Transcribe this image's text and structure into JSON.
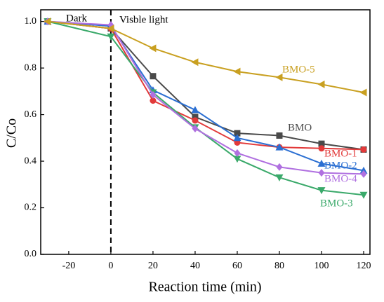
{
  "chart_data": {
    "type": "line",
    "x_label": "Reaction time (min)",
    "y_label": "C/Co",
    "annotations": [
      "Dark",
      "Visble light"
    ],
    "divider_x": 0,
    "x": [
      -30,
      0,
      20,
      40,
      60,
      80,
      100,
      120
    ],
    "series": [
      {
        "name": "BMO",
        "color": "#4a4a4a",
        "marker": "square",
        "values": [
          1.0,
          0.97,
          0.765,
          0.59,
          0.52,
          0.51,
          0.475,
          0.45
        ]
      },
      {
        "name": "BMO-1",
        "color": "#e23a3a",
        "marker": "circle",
        "values": [
          1.0,
          0.97,
          0.66,
          0.575,
          0.48,
          0.46,
          0.455,
          0.45
        ]
      },
      {
        "name": "BMO-2",
        "color": "#2b6fd2",
        "marker": "triangle-up",
        "values": [
          1.0,
          0.98,
          0.705,
          0.62,
          0.5,
          0.46,
          0.39,
          0.36
        ]
      },
      {
        "name": "BMO-3",
        "color": "#3aa96a",
        "marker": "triangle-down",
        "values": [
          1.0,
          0.935,
          0.695,
          0.545,
          0.41,
          0.33,
          0.275,
          0.255
        ]
      },
      {
        "name": "BMO-4",
        "color": "#b070e0",
        "marker": "diamond",
        "values": [
          1.0,
          0.985,
          0.685,
          0.54,
          0.435,
          0.375,
          0.35,
          0.345
        ]
      },
      {
        "name": "BMO-5",
        "color": "#c9a021",
        "marker": "triangle-left",
        "values": [
          1.0,
          0.97,
          0.885,
          0.825,
          0.785,
          0.76,
          0.73,
          0.695
        ]
      }
    ],
    "xlim": [
      -33.3,
      123
    ],
    "xticks": [
      -20,
      0,
      20,
      40,
      60,
      80,
      100,
      120
    ],
    "ylim": [
      0,
      1.05
    ],
    "yticks": [
      {
        "value": 0,
        "label": "0.0"
      },
      {
        "value": 0.2,
        "label": "0.2"
      },
      {
        "value": 0.4,
        "label": "0.4"
      },
      {
        "value": 0.6,
        "label": "0.6"
      },
      {
        "value": 0.8,
        "label": "0.8"
      },
      {
        "value": 1.0,
        "label": "1.0"
      }
    ]
  }
}
